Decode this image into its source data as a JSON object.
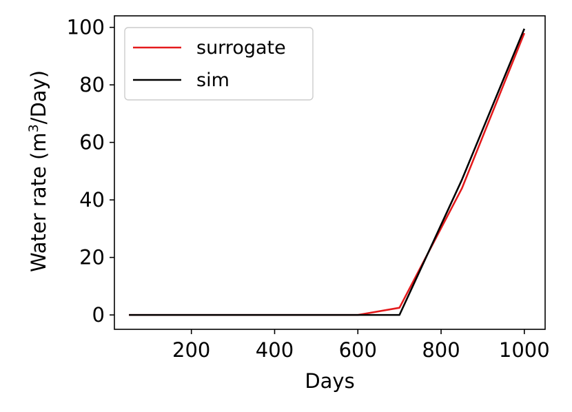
{
  "chart_data": {
    "type": "line",
    "xlabel": "Days",
    "ylabel": {
      "prefix": "Water rate (m",
      "sup": "3",
      "suffix": "/Day)"
    },
    "xlim": [
      15,
      1050
    ],
    "ylim": [
      -5,
      104
    ],
    "xticks": [
      200,
      400,
      600,
      800,
      1000
    ],
    "yticks": [
      0,
      20,
      40,
      60,
      80,
      100
    ],
    "legend_position": "upper-left",
    "grid": false,
    "series": [
      {
        "name": "surrogate",
        "color": "#e41a1c",
        "x": [
          50,
          600,
          700,
          850,
          1000
        ],
        "y": [
          0,
          0,
          2.5,
          44,
          98
        ]
      },
      {
        "name": "sim",
        "color": "#000000",
        "x": [
          50,
          600,
          700,
          850,
          1000
        ],
        "y": [
          0,
          0,
          0,
          47,
          99.5
        ]
      }
    ]
  }
}
